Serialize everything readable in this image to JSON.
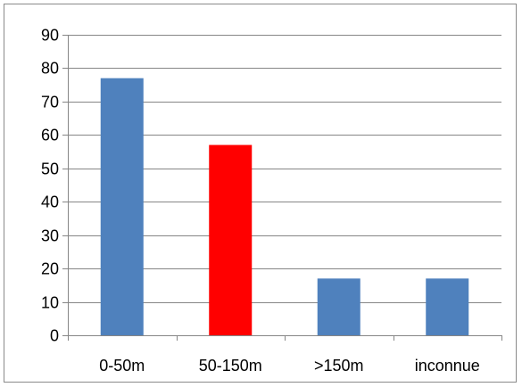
{
  "chart_data": {
    "type": "bar",
    "categories": [
      "0-50m",
      "50-150m",
      ">150m",
      "inconnue"
    ],
    "values": [
      77,
      57,
      17,
      17
    ],
    "bar_colors": [
      "#4f81bd",
      "#ff0000",
      "#4f81bd",
      "#4f81bd"
    ],
    "ylim": [
      0,
      90
    ],
    "y_ticks": [
      0,
      10,
      20,
      30,
      40,
      50,
      60,
      70,
      80,
      90
    ],
    "grid": true,
    "gridline_color": "#868686",
    "legend": "none"
  }
}
